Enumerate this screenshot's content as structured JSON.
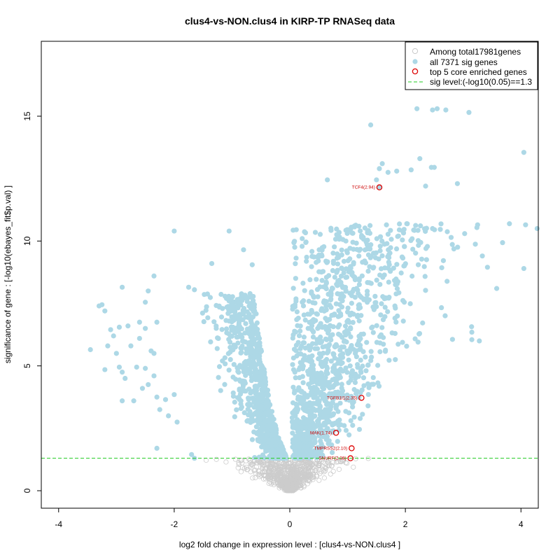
{
  "chart_data": {
    "type": "scatter",
    "title": "clus4-vs-NON.clus4 in KIRP-TP RNASeq data",
    "xlabel": "log2 fold change in expression level : [clus4-vs-NON.clus4 ]",
    "ylabel": "significance of gene : [-log10(ebayes_fit$p.val) ]",
    "xlim": [
      -4.3,
      4.3
    ],
    "ylim": [
      -0.7,
      18.0
    ],
    "x_ticks": [
      -4,
      -2,
      0,
      2,
      4
    ],
    "y_ticks": [
      0,
      5,
      10,
      15
    ],
    "grid": false,
    "legend_position": "top-right",
    "sig_level": 1.3,
    "colors": {
      "nonsig": "#cccccc",
      "sig": "#add8e6",
      "core": "#dd0000",
      "sigline": "#22cc22"
    },
    "legend": [
      {
        "label": "Among total17981genes",
        "marker": "open-circle-gray"
      },
      {
        "label": "all 7371 sig genes",
        "marker": "filled-circle-lightblue"
      },
      {
        "label": "top 5 core enriched genes",
        "marker": "open-circle-red"
      },
      {
        "label": "sig level:(-log10(0.05)==1.3",
        "marker": "dashed-line-green"
      }
    ],
    "core_genes": [
      {
        "label": "TCF4(2.94)",
        "x": 1.55,
        "y": 12.15
      },
      {
        "label": "TGFB1I1(2.35)",
        "x": 1.24,
        "y": 3.72
      },
      {
        "label": "MAK(1.74)",
        "x": 0.8,
        "y": 2.32
      },
      {
        "label": "TMPRSS2(2.10)",
        "x": 1.07,
        "y": 1.7
      },
      {
        "label": "SNURF(2.08)",
        "x": 1.05,
        "y": 1.3
      }
    ],
    "highlight_points": [
      [
        2.2,
        15.3
      ],
      [
        2.55,
        15.3
      ],
      [
        2.7,
        15.25
      ],
      [
        3.1,
        15.15
      ],
      [
        2.47,
        15.25
      ],
      [
        1.4,
        14.65
      ],
      [
        4.05,
        13.55
      ],
      [
        2.25,
        13.3
      ],
      [
        1.6,
        13.1
      ],
      [
        1.55,
        12.9
      ],
      [
        2.5,
        12.95
      ],
      [
        2.45,
        12.95
      ],
      [
        1.7,
        12.75
      ],
      [
        1.85,
        12.8
      ],
      [
        2.1,
        12.85
      ],
      [
        0.65,
        12.45
      ],
      [
        1.5,
        12.45
      ],
      [
        2.9,
        12.3
      ],
      [
        2.35,
        12.2
      ],
      [
        1.55,
        12.15
      ],
      [
        4.08,
        10.65
      ],
      [
        4.28,
        10.5
      ],
      [
        3.25,
        10.65
      ],
      [
        4.05,
        8.9
      ],
      [
        3.58,
        8.1
      ],
      [
        3.42,
        8.95
      ],
      [
        3.15,
        6.35
      ],
      [
        3.15,
        6.05
      ],
      [
        3.28,
        6.0
      ],
      [
        -1.05,
        10.4
      ],
      [
        -2.0,
        10.4
      ],
      [
        -0.8,
        9.65
      ],
      [
        -1.35,
        9.1
      ],
      [
        -0.65,
        9.05
      ],
      [
        -2.35,
        8.6
      ],
      [
        -2.9,
        8.15
      ],
      [
        -1.75,
        8.15
      ],
      [
        -1.65,
        8.05
      ],
      [
        -2.45,
        8.0
      ],
      [
        -3.3,
        7.4
      ],
      [
        -3.25,
        7.45
      ],
      [
        -3.2,
        7.2
      ],
      [
        -2.5,
        7.55
      ],
      [
        -2.6,
        6.75
      ],
      [
        -3.1,
        6.45
      ],
      [
        -2.95,
        6.55
      ],
      [
        -2.8,
        6.6
      ],
      [
        -3.05,
        6.2
      ],
      [
        -2.5,
        6.5
      ],
      [
        -2.3,
        6.75
      ],
      [
        -3.45,
        5.65
      ],
      [
        -3.15,
        5.8
      ],
      [
        -3.0,
        5.5
      ],
      [
        -2.75,
        5.8
      ],
      [
        -2.6,
        6.1
      ],
      [
        -2.35,
        5.5
      ],
      [
        -3.2,
        4.85
      ],
      [
        -2.95,
        4.95
      ],
      [
        -2.9,
        4.75
      ],
      [
        -2.65,
        4.95
      ],
      [
        -2.5,
        4.9
      ],
      [
        -2.4,
        5.6
      ],
      [
        -2.85,
        4.5
      ],
      [
        -2.45,
        4.25
      ],
      [
        -2.35,
        4.6
      ],
      [
        -2.3,
        3.75
      ],
      [
        -2.15,
        3.65
      ],
      [
        -2.0,
        3.85
      ],
      [
        -2.9,
        3.6
      ],
      [
        -2.25,
        3.25
      ],
      [
        -2.1,
        3.0
      ],
      [
        -1.95,
        2.75
      ],
      [
        -2.3,
        1.7
      ],
      [
        -1.7,
        1.45
      ],
      [
        -1.65,
        1.3
      ],
      [
        -2.7,
        3.6
      ],
      [
        -2.55,
        4.1
      ]
    ],
    "sig_cluster": {
      "left_envelope": [
        [
          -0.05,
          1.3
        ],
        [
          -0.2,
          2.2
        ],
        [
          -0.35,
          3.6
        ],
        [
          -0.45,
          5.0
        ],
        [
          -0.55,
          6.6
        ],
        [
          -0.62,
          7.8
        ],
        [
          -0.7,
          8.2
        ]
      ],
      "right_envelope": [
        [
          0.05,
          1.3
        ],
        [
          0.25,
          2.5
        ],
        [
          0.45,
          4.2
        ],
        [
          0.7,
          6.4
        ],
        [
          1.0,
          8.4
        ],
        [
          1.5,
          10.4
        ],
        [
          2.2,
          11.0
        ],
        [
          3.0,
          11.4
        ]
      ]
    },
    "point_counts": {
      "sig": 7371,
      "total": 17981
    }
  }
}
